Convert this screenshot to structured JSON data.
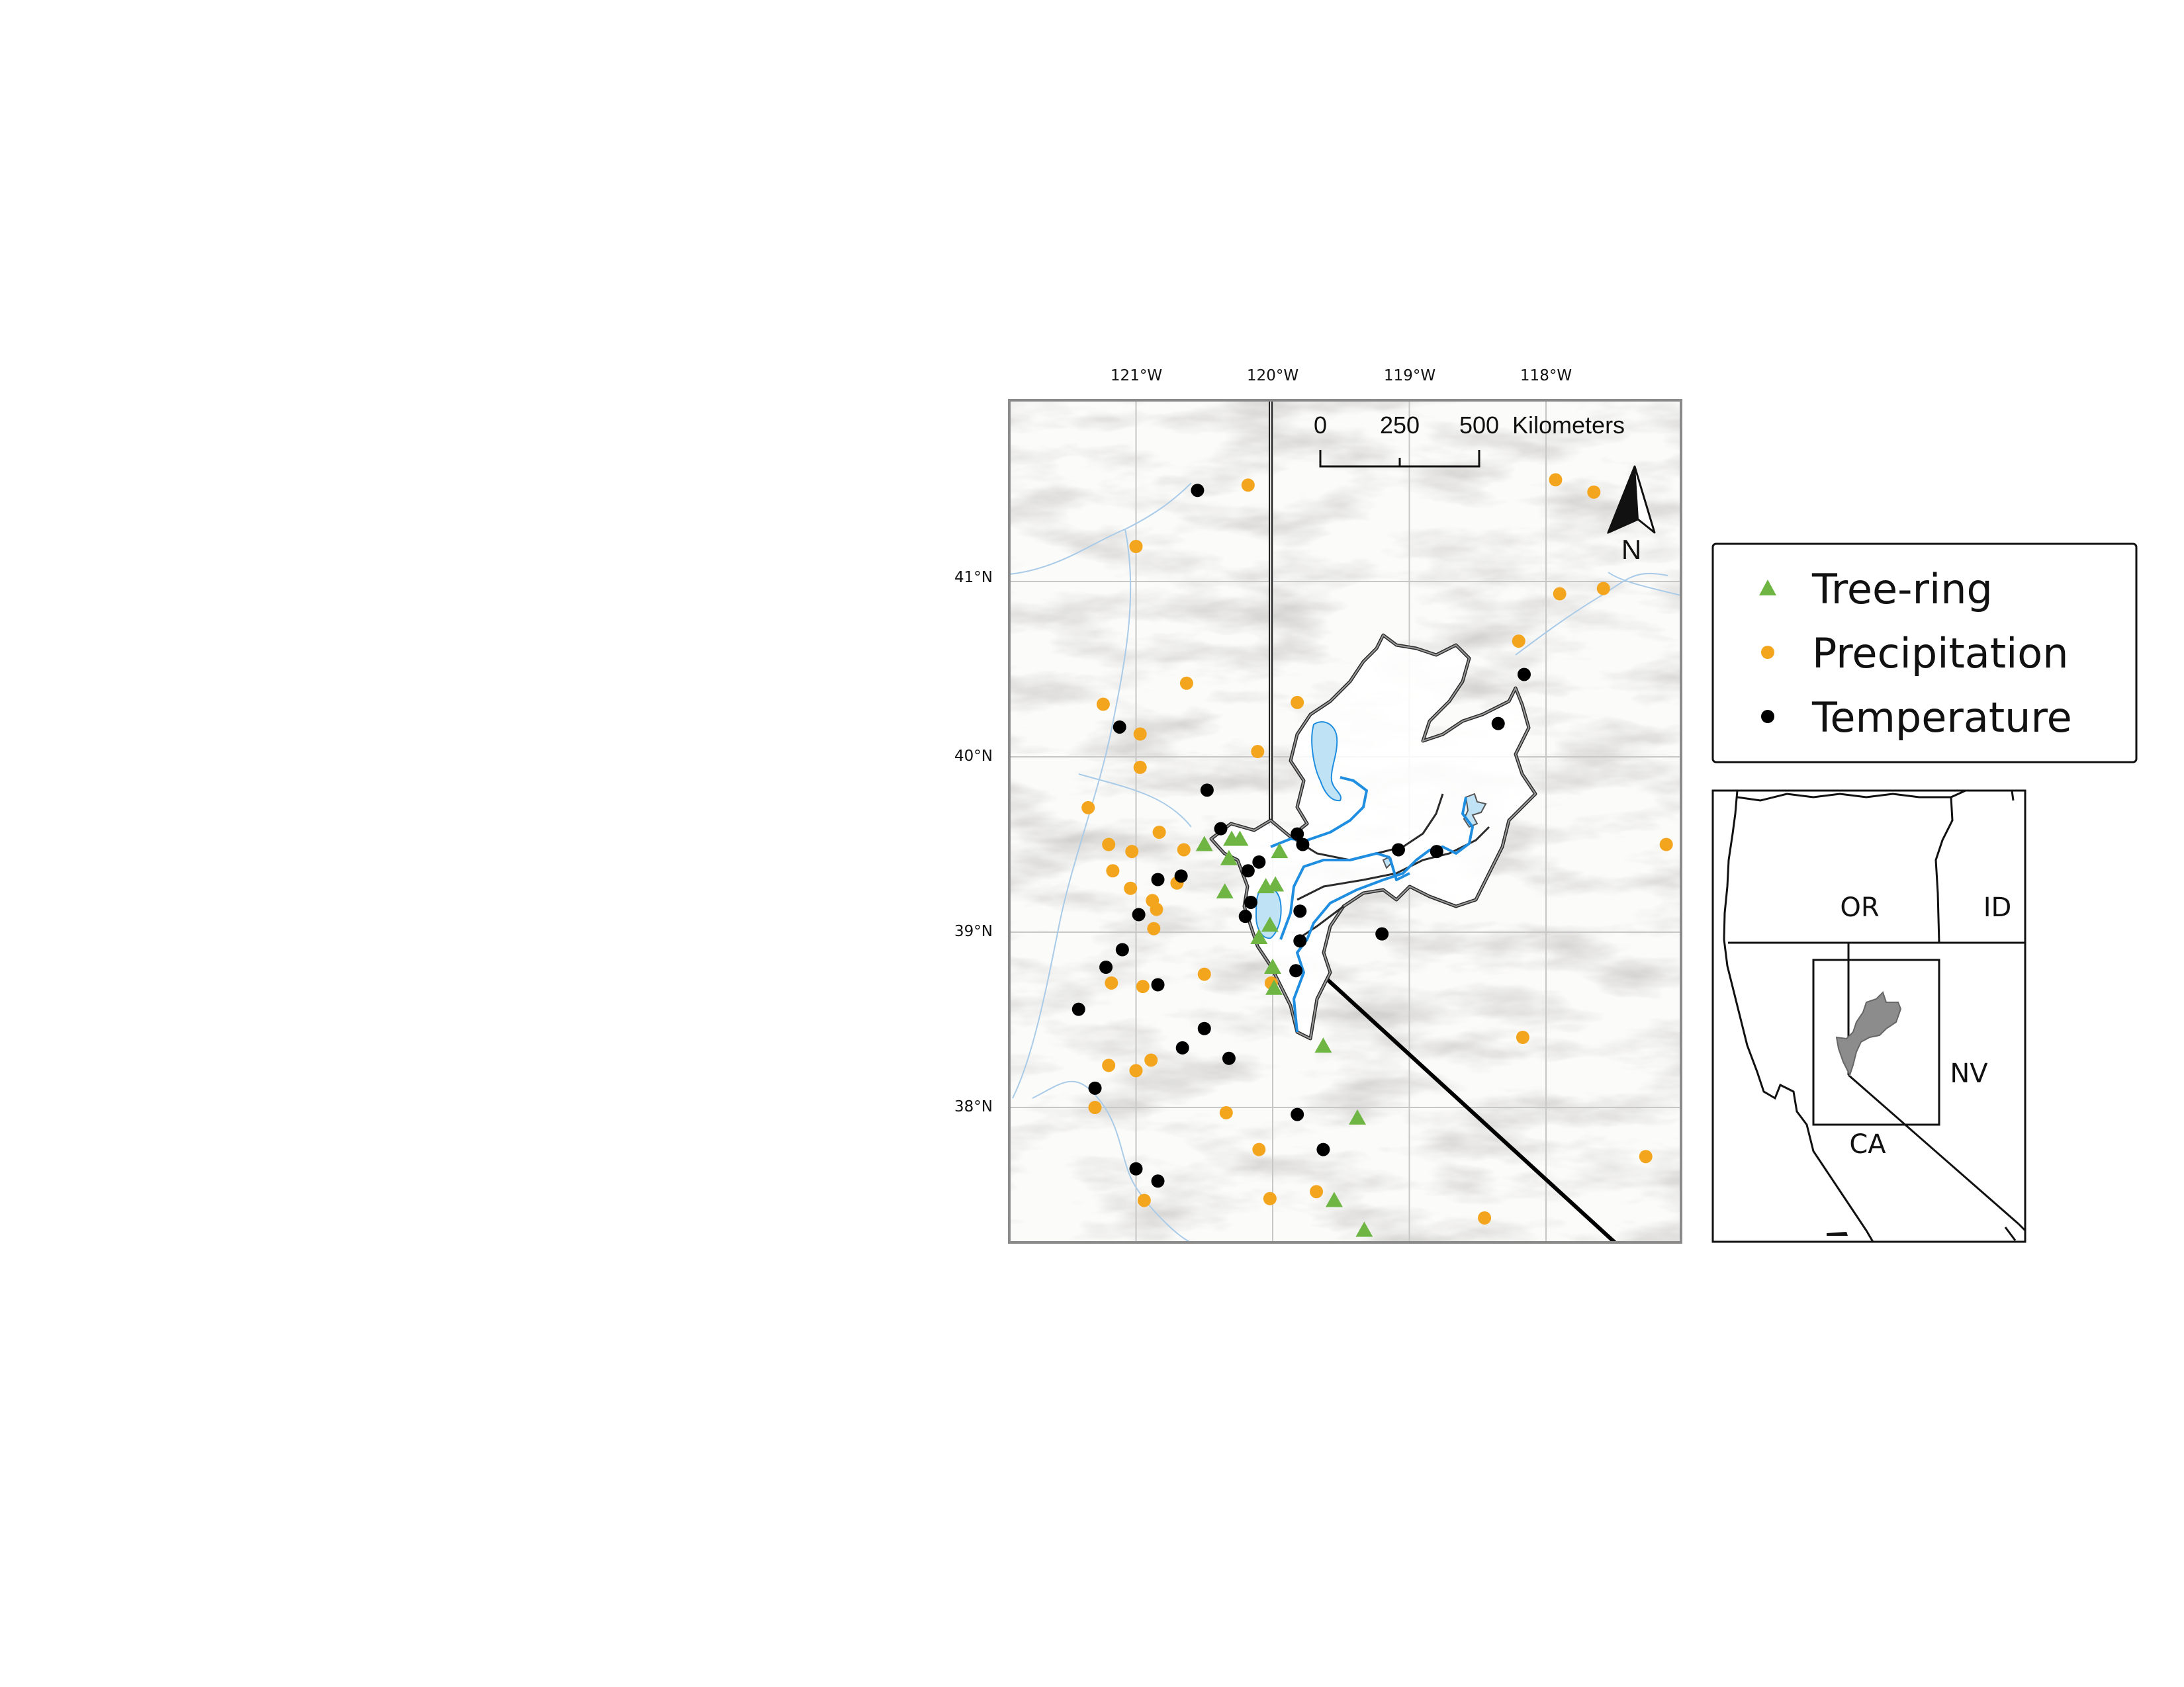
{
  "longitude_labels": [
    "121°W",
    "120°W",
    "119°W",
    "118°W"
  ],
  "latitude_labels": [
    "41°N",
    "40°N",
    "39°N",
    "38°N"
  ],
  "scale_bar": {
    "ticks": [
      "0",
      "250",
      "500"
    ],
    "unit": "Kilometers"
  },
  "north_arrow": {
    "label": "N"
  },
  "legend": {
    "items": [
      {
        "label": "Tree-ring",
        "symbol": "triangle",
        "color": "#6fb544"
      },
      {
        "label": "Precipitation",
        "symbol": "circle",
        "color": "#f4a51e"
      },
      {
        "label": "Temperature",
        "symbol": "circle",
        "color": "#000000"
      }
    ]
  },
  "inset": {
    "states": [
      "OR",
      "ID",
      "NV",
      "CA"
    ],
    "basin_color": "#8c8c8c"
  },
  "colors": {
    "river": "#1f8ee0",
    "lake": "#bfe3f5",
    "boundary": "#333333"
  },
  "stations": {
    "tree_ring": [
      [
        -120.5,
        39.5
      ],
      [
        -120.3,
        39.53
      ],
      [
        -120.24,
        39.53
      ],
      [
        -120.32,
        39.42
      ],
      [
        -120.35,
        39.23
      ],
      [
        -119.98,
        39.27
      ],
      [
        -120.05,
        39.26
      ],
      [
        -119.95,
        39.46
      ],
      [
        -120.1,
        38.97
      ],
      [
        -120.02,
        39.04
      ],
      [
        -120.0,
        38.8
      ],
      [
        -119.99,
        38.68
      ],
      [
        -119.63,
        38.35
      ],
      [
        -119.38,
        37.94
      ],
      [
        -119.55,
        37.47
      ],
      [
        -119.33,
        37.3
      ]
    ],
    "precipitation": [
      [
        -120.18,
        41.55
      ],
      [
        -121.0,
        41.2
      ],
      [
        -117.93,
        41.58
      ],
      [
        -117.65,
        41.51
      ],
      [
        -117.58,
        40.96
      ],
      [
        -117.9,
        40.93
      ],
      [
        -118.2,
        40.66
      ],
      [
        -119.82,
        40.31
      ],
      [
        -120.63,
        40.42
      ],
      [
        -121.24,
        40.3
      ],
      [
        -120.97,
        40.13
      ],
      [
        -120.11,
        40.03
      ],
      [
        -120.97,
        39.94
      ],
      [
        -121.35,
        39.71
      ],
      [
        -120.83,
        39.57
      ],
      [
        -121.2,
        39.5
      ],
      [
        -121.03,
        39.46
      ],
      [
        -120.65,
        39.47
      ],
      [
        -121.17,
        39.35
      ],
      [
        -121.04,
        39.25
      ],
      [
        -120.7,
        39.28
      ],
      [
        -120.88,
        39.18
      ],
      [
        -120.85,
        39.13
      ],
      [
        -120.87,
        39.02
      ],
      [
        -120.5,
        38.76
      ],
      [
        -121.18,
        38.71
      ],
      [
        -120.95,
        38.69
      ],
      [
        -120.01,
        38.71
      ],
      [
        -117.12,
        39.5
      ],
      [
        -118.17,
        38.4
      ],
      [
        -120.89,
        38.27
      ],
      [
        -121.0,
        38.21
      ],
      [
        -121.2,
        38.24
      ],
      [
        -121.3,
        38.0
      ],
      [
        -120.34,
        37.97
      ],
      [
        -120.1,
        37.76
      ],
      [
        -119.68,
        37.52
      ],
      [
        -120.02,
        37.48
      ],
      [
        -120.94,
        37.47
      ],
      [
        -117.27,
        37.72
      ],
      [
        -118.45,
        37.37
      ]
    ],
    "temperature": [
      [
        -120.55,
        41.52
      ],
      [
        -121.12,
        40.17
      ],
      [
        -120.48,
        39.81
      ],
      [
        -120.38,
        39.59
      ],
      [
        -120.18,
        39.35
      ],
      [
        -120.1,
        39.4
      ],
      [
        -119.82,
        39.56
      ],
      [
        -119.78,
        39.5
      ],
      [
        -120.16,
        39.17
      ],
      [
        -120.2,
        39.09
      ],
      [
        -119.8,
        39.12
      ],
      [
        -120.84,
        39.3
      ],
      [
        -120.67,
        39.32
      ],
      [
        -120.98,
        39.1
      ],
      [
        -119.8,
        38.95
      ],
      [
        -119.2,
        38.99
      ],
      [
        -121.1,
        38.9
      ],
      [
        -121.22,
        38.8
      ],
      [
        -119.83,
        38.78
      ],
      [
        -120.84,
        38.7
      ],
      [
        -121.42,
        38.56
      ],
      [
        -120.5,
        38.45
      ],
      [
        -120.66,
        38.34
      ],
      [
        -120.32,
        38.28
      ],
      [
        -121.3,
        38.11
      ],
      [
        -119.82,
        37.96
      ],
      [
        -119.63,
        37.76
      ],
      [
        -121.0,
        37.65
      ],
      [
        -120.84,
        37.58
      ],
      [
        -119.08,
        39.47
      ],
      [
        -118.8,
        39.46
      ],
      [
        -118.35,
        40.19
      ],
      [
        -118.16,
        40.47
      ]
    ]
  }
}
